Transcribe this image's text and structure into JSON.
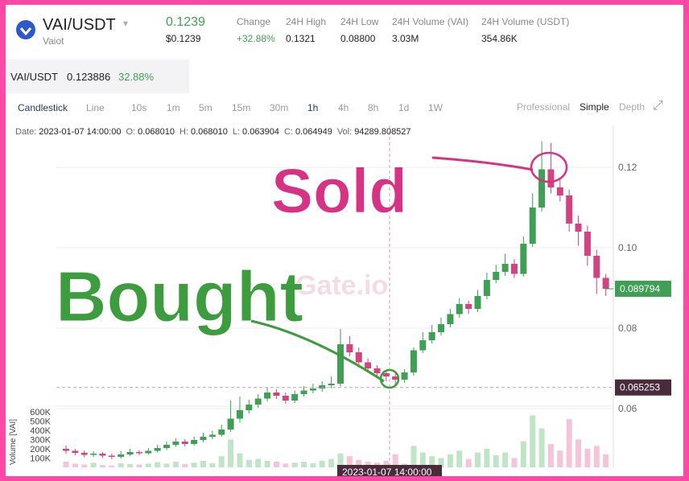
{
  "header": {
    "pair": "VAI/USDT",
    "name": "Vaiot",
    "price": "0.1239",
    "price_usd": "$0.1239",
    "stats": [
      {
        "label": "Change",
        "value": "+32.88%"
      },
      {
        "label": "24H High",
        "value": "0.1321"
      },
      {
        "label": "24H Low",
        "value": "0.08800"
      },
      {
        "label": "24H Volume (VAI)",
        "value": "3.03M"
      },
      {
        "label": "24H Volume (USDT)",
        "value": "354.86K"
      }
    ]
  },
  "ticker": {
    "pair": "VAI/USDT",
    "price": "0.123886",
    "change": "32.88%"
  },
  "toolbar": {
    "left": [
      "Candlestick",
      "Line",
      "10s",
      "1m",
      "5m",
      "15m",
      "30m",
      "1h",
      "4h",
      "8h",
      "1d",
      "1W"
    ],
    "right": [
      "Professional",
      "Simple",
      "Depth"
    ]
  },
  "info": [
    {
      "label": "Date:",
      "value": "2023-01-07 14:00:00"
    },
    {
      "label": "O:",
      "value": "0.068010"
    },
    {
      "label": "H:",
      "value": "0.068010"
    },
    {
      "label": "L:",
      "value": "0.063904"
    },
    {
      "label": "C:",
      "value": "0.064949"
    },
    {
      "label": "Vol:",
      "value": "94289.808527"
    }
  ],
  "chart_data": {
    "type": "candlestick",
    "watermark": "Gate.io",
    "up_color": "#3f9f55",
    "down_color": "#d2447f",
    "ylim": [
      0.0456,
      0.1275
    ],
    "yticks": [
      0.06,
      0.08,
      {
        "value": 0.1,
        "label": "0.10"
      },
      0.12
    ],
    "last_price": 0.089794,
    "crosshair_price": 0.065253,
    "crosshair_time": "2023-01-07 14:00:00",
    "volume_label": "Volume [VAI]",
    "volume_ylim": [
      0,
      650000
    ],
    "volume_ticks": [
      {
        "value": 100000,
        "label": "100K"
      },
      {
        "value": 200000,
        "label": "200K"
      },
      {
        "value": 300000,
        "label": "300K"
      },
      {
        "value": 400000,
        "label": "400K"
      },
      {
        "value": 500000,
        "label": "500K"
      },
      {
        "value": 600000,
        "label": "600K"
      }
    ],
    "annotations": [
      "Sold",
      "Bought"
    ],
    "open": [
      0.05,
      0.0495,
      0.049,
      0.0485,
      0.0488,
      0.0483,
      0.048,
      0.0486,
      0.0492,
      0.0489,
      0.0495,
      0.0502,
      0.051,
      0.0518,
      0.0512,
      0.0522,
      0.053,
      0.0535,
      0.0548,
      0.0575,
      0.0596,
      0.061,
      0.0625,
      0.064,
      0.0632,
      0.062,
      0.0636,
      0.0645,
      0.065,
      0.0658,
      0.0662,
      0.076,
      0.074,
      0.0715,
      0.07,
      0.0688,
      0.068,
      0.0672,
      0.069,
      0.0745,
      0.077,
      0.079,
      0.081,
      0.0835,
      0.086,
      0.0848,
      0.088,
      0.092,
      0.094,
      0.096,
      0.0935,
      0.101,
      0.11,
      0.1195,
      0.115,
      0.113,
      0.106,
      0.104,
      0.098,
      0.0925
    ],
    "high": [
      0.0508,
      0.05,
      0.0496,
      0.0494,
      0.0492,
      0.0488,
      0.0494,
      0.05,
      0.0497,
      0.0502,
      0.051,
      0.0518,
      0.0526,
      0.0524,
      0.053,
      0.054,
      0.0545,
      0.056,
      0.062,
      0.063,
      0.0622,
      0.0636,
      0.0652,
      0.0648,
      0.064,
      0.0645,
      0.0656,
      0.0662,
      0.0668,
      0.068,
      0.0798,
      0.078,
      0.0752,
      0.0725,
      0.0708,
      0.0694,
      0.0688,
      0.0698,
      0.0752,
      0.079,
      0.0808,
      0.0826,
      0.0848,
      0.0875,
      0.0868,
      0.0895,
      0.0938,
      0.0958,
      0.0985,
      0.0972,
      0.1028,
      0.1135,
      0.1265,
      0.126,
      0.1175,
      0.1145,
      0.108,
      0.1055,
      0.0995,
      0.0935
    ],
    "low": [
      0.0488,
      0.0484,
      0.0479,
      0.048,
      0.0477,
      0.0474,
      0.0476,
      0.0482,
      0.0484,
      0.0485,
      0.049,
      0.0497,
      0.0505,
      0.0506,
      0.0508,
      0.0516,
      0.0524,
      0.053,
      0.0542,
      0.0565,
      0.0588,
      0.0602,
      0.0618,
      0.0624,
      0.0612,
      0.0614,
      0.063,
      0.0638,
      0.0642,
      0.065,
      0.0655,
      0.073,
      0.0705,
      0.069,
      0.0678,
      0.0668,
      0.066,
      0.0664,
      0.0682,
      0.0738,
      0.0762,
      0.0782,
      0.0802,
      0.0826,
      0.0836,
      0.084,
      0.0872,
      0.0912,
      0.093,
      0.0925,
      0.0928,
      0.1002,
      0.109,
      0.1135,
      0.1115,
      0.104,
      0.1005,
      0.0955,
      0.0885,
      0.088
    ],
    "close": [
      0.0495,
      0.049,
      0.0485,
      0.0488,
      0.0483,
      0.048,
      0.0486,
      0.0492,
      0.0489,
      0.0495,
      0.0502,
      0.051,
      0.0518,
      0.0512,
      0.0522,
      0.053,
      0.0535,
      0.0548,
      0.0575,
      0.0596,
      0.061,
      0.0625,
      0.064,
      0.0632,
      0.062,
      0.0636,
      0.0645,
      0.065,
      0.0658,
      0.0662,
      0.076,
      0.074,
      0.0715,
      0.07,
      0.0688,
      0.068,
      0.0672,
      0.069,
      0.0745,
      0.077,
      0.079,
      0.081,
      0.0835,
      0.086,
      0.0848,
      0.088,
      0.092,
      0.094,
      0.096,
      0.0935,
      0.101,
      0.11,
      0.1195,
      0.115,
      0.113,
      0.106,
      0.104,
      0.098,
      0.0925,
      0.0898
    ],
    "volume": [
      60000,
      40000,
      30000,
      50000,
      25000,
      20000,
      45000,
      35000,
      30000,
      40000,
      55000,
      40000,
      60000,
      35000,
      50000,
      70000,
      45000,
      120000,
      300000,
      150000,
      80000,
      90000,
      70000,
      60000,
      40000,
      50000,
      60000,
      45000,
      70000,
      90000,
      150000,
      120000,
      80000,
      60000,
      50000,
      70000,
      140000,
      40000,
      230000,
      160000,
      120000,
      100000,
      140000,
      180000,
      90000,
      160000,
      200000,
      130000,
      160000,
      100000,
      280000,
      560000,
      420000,
      250000,
      180000,
      520000,
      300000,
      200000,
      230000,
      140000
    ]
  }
}
